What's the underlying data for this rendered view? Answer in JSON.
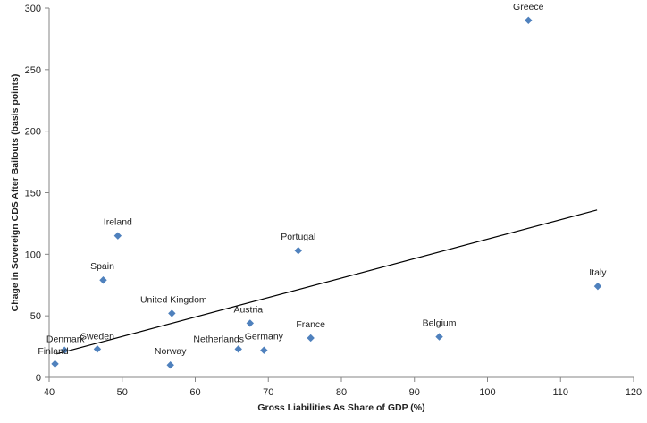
{
  "chart_data": {
    "type": "scatter",
    "title": "",
    "xlabel": "Gross Liabilities  As Share of GDP (%)",
    "ylabel": "Chage in Sovereign CDS After Bailouts (basis points)",
    "xlim": [
      40,
      120
    ],
    "ylim": [
      0,
      300
    ],
    "xticks": [
      40,
      50,
      60,
      70,
      80,
      90,
      100,
      110,
      120
    ],
    "yticks": [
      0,
      50,
      100,
      150,
      200,
      250,
      300
    ],
    "grid": false,
    "legend": "none",
    "marker": "diamond",
    "marker_color": "#4F81BD",
    "trendline_color": "#000000",
    "trendline": {
      "x": [
        41,
        115
      ],
      "y": [
        19,
        136
      ]
    },
    "points": [
      {
        "label": "Greece",
        "x": 105.6,
        "y": 290
      },
      {
        "label": "Italy",
        "x": 115.1,
        "y": 74
      },
      {
        "label": "Belgium",
        "x": 93.4,
        "y": 33
      },
      {
        "label": "Portugal",
        "x": 74.1,
        "y": 103
      },
      {
        "label": "France",
        "x": 75.8,
        "y": 32
      },
      {
        "label": "Germany",
        "x": 69.4,
        "y": 22
      },
      {
        "label": "Austria",
        "x": 67.5,
        "y": 44
      },
      {
        "label": "Netherlands",
        "x": 65.9,
        "y": 23
      },
      {
        "label": "United Kingdom",
        "x": 56.8,
        "y": 52
      },
      {
        "label": "Norway",
        "x": 56.6,
        "y": 10
      },
      {
        "label": "Ireland",
        "x": 49.4,
        "y": 115
      },
      {
        "label": "Spain",
        "x": 47.4,
        "y": 79
      },
      {
        "label": "Sweden",
        "x": 46.6,
        "y": 23
      },
      {
        "label": "Denmark",
        "x": 42.1,
        "y": 22
      },
      {
        "label": "Finland",
        "x": 40.8,
        "y": 11
      }
    ]
  }
}
